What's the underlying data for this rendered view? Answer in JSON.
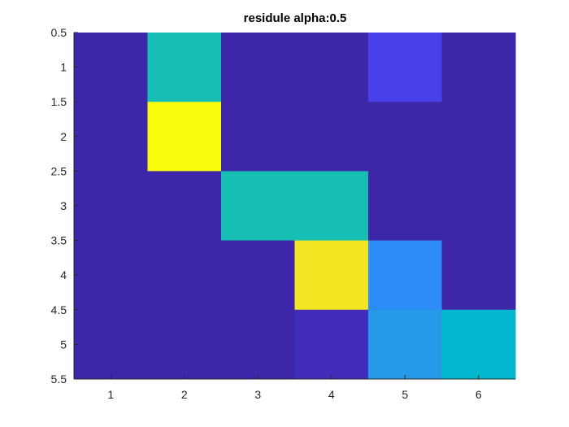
{
  "chart_data": {
    "type": "heatmap",
    "title": "residule alpha:0.5",
    "xlabel": "",
    "ylabel": "",
    "x_ticks": [
      "1",
      "2",
      "3",
      "4",
      "5",
      "6"
    ],
    "y_ticks": [
      "0.5",
      "1",
      "1.5",
      "2",
      "2.5",
      "3",
      "3.5",
      "4",
      "4.5",
      "5",
      "5.5"
    ],
    "xlim": [
      0.5,
      6.5
    ],
    "ylim": [
      0.5,
      5.5
    ],
    "y_reversed": true,
    "colormap": "parula",
    "clim": [
      0,
      1
    ],
    "rows": [
      1,
      2,
      3,
      4,
      5
    ],
    "cols": [
      1,
      2,
      3,
      4,
      5,
      6
    ],
    "values": [
      [
        0.0,
        0.55,
        0.0,
        0.0,
        0.08,
        0.0
      ],
      [
        0.0,
        1.0,
        0.0,
        0.0,
        0.0,
        0.0
      ],
      [
        0.0,
        0.0,
        0.55,
        0.55,
        0.0,
        0.0
      ],
      [
        0.0,
        0.0,
        0.0,
        0.95,
        0.28,
        0.0
      ],
      [
        0.0,
        0.0,
        0.0,
        0.02,
        0.33,
        0.45
      ]
    ],
    "grid": false
  }
}
